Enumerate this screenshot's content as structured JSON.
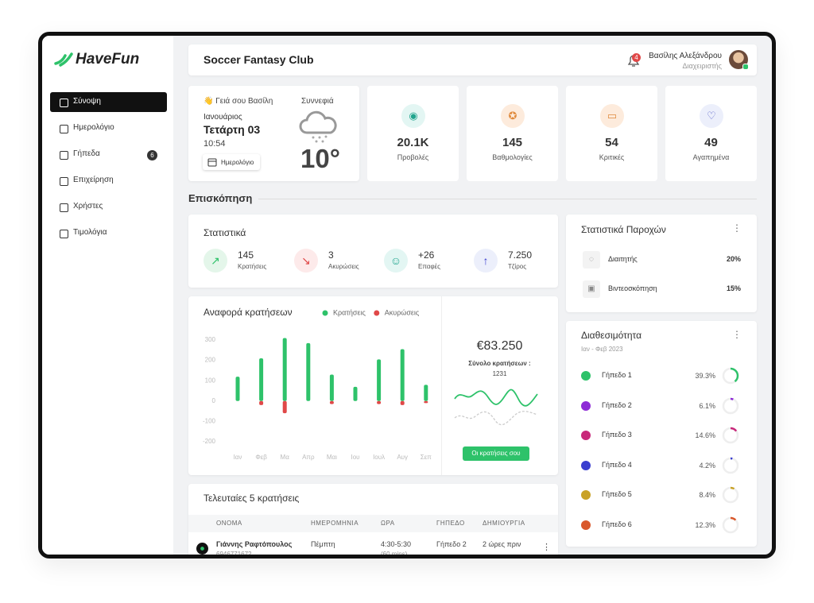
{
  "brand": "HaveFun",
  "sidebar": {
    "items": [
      {
        "label": "Σύνοψη"
      },
      {
        "label": "Ημερολόγιο"
      },
      {
        "label": "Γήπεδα",
        "badge": 6
      },
      {
        "label": "Επιχείρηση"
      },
      {
        "label": "Χρήστες"
      },
      {
        "label": "Τιμολόγια"
      }
    ]
  },
  "header": {
    "title": "Soccer Fantasy Club",
    "notifications": 4,
    "user_name": "Βασίλης Αλεξάνδρου",
    "user_role": "Διαχειριστής"
  },
  "welcome": {
    "greeting": "👋 Γειά σου Βασίλη",
    "month": "Ιανουάριος",
    "day": "Τετάρτη 03",
    "time": "10:54",
    "button": "Ημερολόγιο",
    "weather": "Συννεφιά",
    "temperature": "10°"
  },
  "kpis": [
    {
      "value": "20.1K",
      "label": "Προβολές"
    },
    {
      "value": "145",
      "label": "Βαθμολογίες"
    },
    {
      "value": "54",
      "label": "Κριτικές"
    },
    {
      "value": "49",
      "label": "Αγαπημένα"
    }
  ],
  "overview_title": "Επισκόπηση",
  "stats": {
    "title": "Στατιστικά",
    "items": [
      {
        "value": "145",
        "label": "Κρατήσεις"
      },
      {
        "value": "3",
        "label": "Ακυρώσεις"
      },
      {
        "value": "+26",
        "label": "Επαφές"
      },
      {
        "value": "7.250",
        "label": "Τζίρος"
      }
    ]
  },
  "chart_data": {
    "type": "bar",
    "title": "Αναφορά κρατήσεων",
    "categories": [
      "Ιαν",
      "Φεβ",
      "Μα",
      "Απρ",
      "Μαι",
      "Ιου",
      "Ιουλ",
      "Αυγ",
      "Σεπ"
    ],
    "series": [
      {
        "name": "Κρατήσεις",
        "color": "#2ec26a",
        "values": [
          120,
          210,
          310,
          285,
          130,
          70,
          205,
          255,
          80
        ]
      },
      {
        "name": "Ακυρώσεις",
        "color": "#e04848",
        "values": [
          0,
          -20,
          -60,
          0,
          -15,
          0,
          -15,
          -20,
          -10
        ]
      }
    ],
    "ylim": [
      -200,
      300
    ],
    "yticks": [
      300,
      200,
      100,
      0,
      -100,
      -200
    ]
  },
  "summary": {
    "amount": "€83.250",
    "label": "Σύνολο κρατήσεων :",
    "count": "1231",
    "button": "Οι κρατήσεις σου"
  },
  "providers": {
    "title": "Στατιστικά Παροχών",
    "items": [
      {
        "label": "Διαιτητής",
        "value": "20%"
      },
      {
        "label": "Βιντεοσκόπηση",
        "value": "15%"
      }
    ]
  },
  "availability": {
    "title": "Διαθεσιμότητα",
    "subtitle": "Ιαν - Φεβ 2023",
    "items": [
      {
        "name": "Γήπεδο 1",
        "color": "#2ec26a",
        "value": 39.3,
        "value_label": "39.3%"
      },
      {
        "name": "Γήπεδο 2",
        "color": "#8e2bd6",
        "value": 6.1,
        "value_label": "6.1%"
      },
      {
        "name": "Γήπεδο 3",
        "color": "#c8287a",
        "value": 14.6,
        "value_label": "14.6%"
      },
      {
        "name": "Γήπεδο 4",
        "color": "#3b3fcf",
        "value": 4.2,
        "value_label": "4.2%"
      },
      {
        "name": "Γήπεδο 5",
        "color": "#c9a227",
        "value": 8.4,
        "value_label": "8.4%"
      },
      {
        "name": "Γήπεδο 6",
        "color": "#d9582b",
        "value": 12.3,
        "value_label": "12.3%"
      }
    ]
  },
  "table": {
    "title": "Τελευταίες 5 κρατήσεις",
    "columns": [
      "ΟΝΟΜΑ",
      "ΗΜΕΡΟΜΗΝΙΑ",
      "ΩΡΑ",
      "ΓΗΠΕΔΟ",
      "ΔΗΜΙΟΥΡΓΙΑ"
    ],
    "rows": [
      {
        "name": "Γιάννης Ραφτόπουλος",
        "phone": "6946771672",
        "date": "Πέμπτη",
        "time": "4:30-5:30",
        "duration": "(60 mins)",
        "court": "Γήπεδο 2",
        "created": "2 ώρες πριν"
      }
    ]
  }
}
